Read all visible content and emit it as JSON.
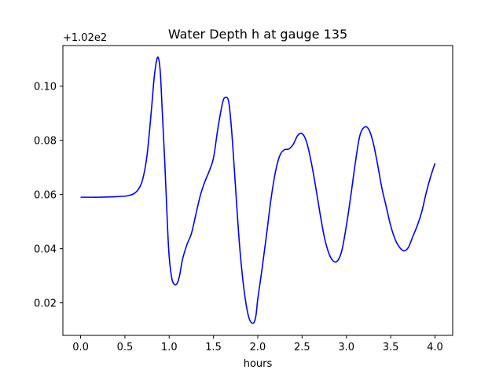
{
  "chart_data": {
    "type": "line",
    "title": "Water Depth h at gauge 135",
    "xlabel": "hours",
    "ylabel": "",
    "y_offset_label": "+1.02e2",
    "xlim": [
      -0.2,
      4.2
    ],
    "ylim": [
      0.008,
      0.115
    ],
    "x_ticks": [
      0.0,
      0.5,
      1.0,
      1.5,
      2.0,
      2.5,
      3.0,
      3.5,
      4.0
    ],
    "x_tick_labels": [
      "0.0",
      "0.5",
      "1.0",
      "1.5",
      "2.0",
      "2.5",
      "3.0",
      "3.5",
      "4.0"
    ],
    "y_ticks": [
      0.02,
      0.04,
      0.06,
      0.08,
      0.1
    ],
    "y_tick_labels": [
      "0.02",
      "0.04",
      "0.06",
      "0.08",
      "0.10"
    ],
    "grid": false,
    "line_color": "#0000ff",
    "series": [
      {
        "x": [
          0.0,
          0.1,
          0.2,
          0.3,
          0.4,
          0.5,
          0.55,
          0.6,
          0.65,
          0.7,
          0.75,
          0.8,
          0.83,
          0.86,
          0.88,
          0.9,
          0.92,
          0.95,
          0.98,
          1.0,
          1.03,
          1.06,
          1.09,
          1.12,
          1.15,
          1.2,
          1.25,
          1.3,
          1.35,
          1.4,
          1.45,
          1.5,
          1.55,
          1.6,
          1.63,
          1.67,
          1.7,
          1.73,
          1.76,
          1.8,
          1.85,
          1.9,
          1.95,
          1.98,
          2.0,
          2.05,
          2.1,
          2.15,
          2.2,
          2.25,
          2.3,
          2.35,
          2.4,
          2.45,
          2.5,
          2.55,
          2.6,
          2.65,
          2.7,
          2.75,
          2.8,
          2.85,
          2.9,
          2.95,
          3.0,
          3.05,
          3.1,
          3.15,
          3.2,
          3.25,
          3.3,
          3.35,
          3.4,
          3.45,
          3.5,
          3.55,
          3.6,
          3.65,
          3.7,
          3.75,
          3.8,
          3.85,
          3.9,
          3.95,
          4.0
        ],
        "y": [
          0.059,
          0.059,
          0.059,
          0.0591,
          0.0592,
          0.0594,
          0.0597,
          0.0603,
          0.0618,
          0.0655,
          0.0745,
          0.0915,
          0.103,
          0.1098,
          0.1102,
          0.105,
          0.092,
          0.072,
          0.049,
          0.037,
          0.029,
          0.0268,
          0.0272,
          0.0305,
          0.036,
          0.0415,
          0.0455,
          0.0525,
          0.0595,
          0.0645,
          0.0685,
          0.0735,
          0.0845,
          0.0935,
          0.0958,
          0.0945,
          0.0855,
          0.072,
          0.057,
          0.039,
          0.0235,
          0.0145,
          0.0125,
          0.0155,
          0.0215,
          0.033,
          0.0455,
          0.0585,
          0.0685,
          0.0745,
          0.0765,
          0.0768,
          0.0785,
          0.0818,
          0.0825,
          0.0795,
          0.0725,
          0.0635,
          0.0535,
          0.0445,
          0.0385,
          0.0355,
          0.0355,
          0.0395,
          0.0485,
          0.0595,
          0.0715,
          0.0815,
          0.0848,
          0.0842,
          0.0795,
          0.0715,
          0.0625,
          0.0555,
          0.0485,
          0.0435,
          0.0405,
          0.0392,
          0.0405,
          0.0445,
          0.0485,
          0.0535,
          0.0605,
          0.0665,
          0.0715
        ]
      }
    ]
  }
}
